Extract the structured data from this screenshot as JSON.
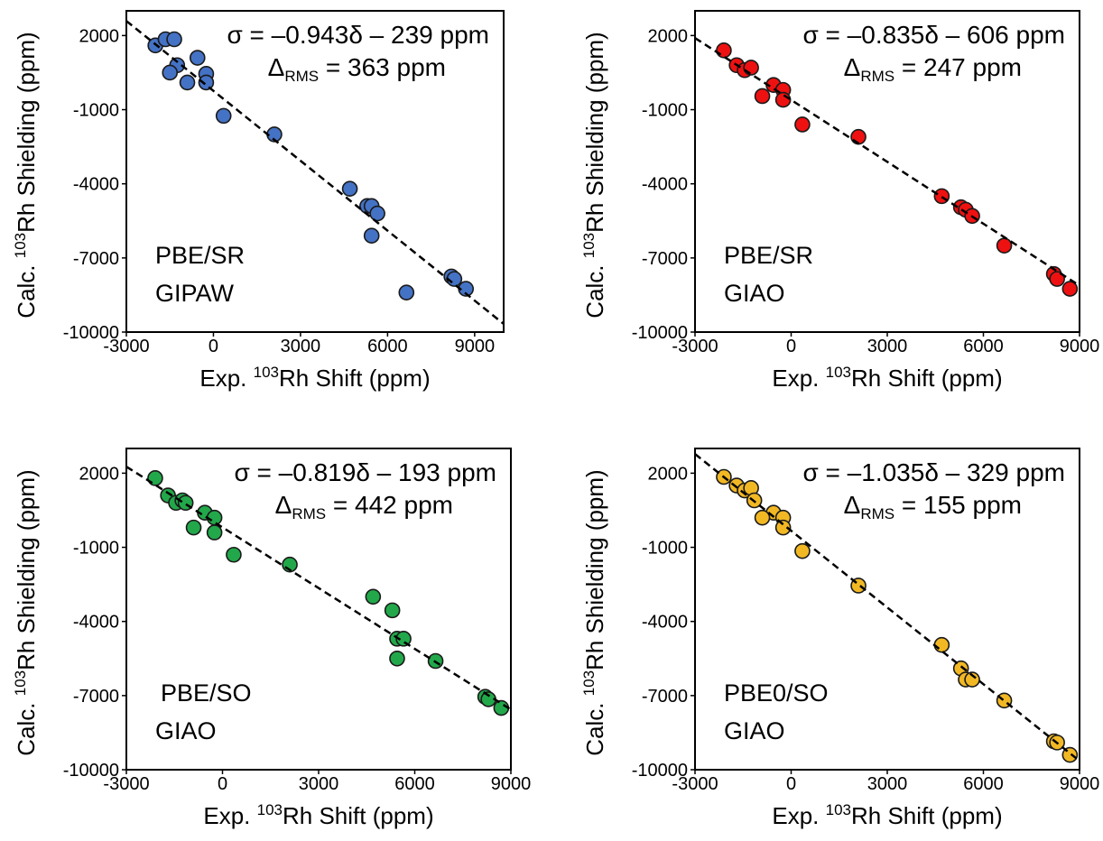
{
  "charts": [
    {
      "equation": "σ = –0.943δ – 239 ppm",
      "rms_prefix": "Δ",
      "rms_sub": "RMS",
      "rms_value": " = 363 ppm",
      "method_line1": "PBE/SR",
      "method_line2": "GIPAW",
      "xlabel_prefix": "Exp. ",
      "xlabel_sup": "103",
      "xlabel_rest": "Rh Shift (ppm)",
      "ylabel_prefix": "Calc. ",
      "ylabel_sup": "103",
      "ylabel_rest": "Rh Shielding (ppm)",
      "point_color": "#4472C4"
    },
    {
      "equation": "σ = –0.835δ – 606 ppm",
      "rms_prefix": "Δ",
      "rms_sub": "RMS",
      "rms_value": " = 247 ppm",
      "method_line1": "PBE/SR",
      "method_line2": "GIAO",
      "xlabel_prefix": "Exp. ",
      "xlabel_sup": "103",
      "xlabel_rest": "Rh Shift (ppm)",
      "ylabel_prefix": "Calc. ",
      "ylabel_sup": "103",
      "ylabel_rest": "Rh Shielding (ppm)",
      "point_color": "#EE1111"
    },
    {
      "equation": "σ = –0.819δ – 193 ppm",
      "rms_prefix": "Δ",
      "rms_sub": "RMS",
      "rms_value": " = 442 ppm",
      "method_line1": "PBE/SO",
      "method_line2": "GIAO",
      "xlabel_prefix": "Exp. ",
      "xlabel_sup": "103",
      "xlabel_rest": "Rh Shift (ppm)",
      "ylabel_prefix": "Calc. ",
      "ylabel_sup": "103",
      "ylabel_rest": "Rh Shielding (ppm)",
      "point_color": "#22A84A"
    },
    {
      "equation": "σ = –1.035δ – 329 ppm",
      "rms_prefix": "Δ",
      "rms_sub": "RMS",
      "rms_value": " = 155 ppm",
      "method_line1": "PBE0/SO",
      "method_line2": "GIAO",
      "xlabel_prefix": "Exp. ",
      "xlabel_sup": "103",
      "xlabel_rest": "Rh Shift (ppm)",
      "ylabel_prefix": "Calc. ",
      "ylabel_sup": "103",
      "ylabel_rest": "Rh Shielding (ppm)",
      "point_color": "#F2B824"
    }
  ],
  "chart_data": [
    {
      "type": "scatter",
      "xlim": [
        -3000,
        10000
      ],
      "ylim": [
        -10000,
        3000
      ],
      "xticks": [
        "-3000",
        "0",
        "3000",
        "6000",
        "9000"
      ],
      "yticks": [
        "2000",
        "-1000",
        "-4000",
        "-7000",
        "-10000"
      ],
      "fit": {
        "slope": -0.943,
        "intercept": -239
      },
      "x": [
        -2000,
        -1650,
        -1350,
        -1250,
        -1500,
        -550,
        -900,
        -250,
        -250,
        350,
        2100,
        4700,
        5300,
        5450,
        5650,
        5450,
        8200,
        8300,
        8700,
        6650
      ],
      "y": [
        1600,
        1850,
        1850,
        800,
        500,
        1100,
        100,
        450,
        100,
        -1250,
        -2000,
        -4200,
        -4900,
        -4900,
        -5200,
        -6100,
        -7750,
        -7850,
        -8250,
        -8400
      ]
    },
    {
      "type": "scatter",
      "xlim": [
        -3000,
        9000
      ],
      "ylim": [
        -10000,
        3000
      ],
      "xticks": [
        "-3000",
        "0",
        "3000",
        "6000",
        "9000"
      ],
      "yticks": [
        "2000",
        "-1000",
        "-4000",
        "-7000",
        "-10000"
      ],
      "fit": {
        "slope": -0.835,
        "intercept": -606
      },
      "x": [
        -2100,
        -1700,
        -1450,
        -1250,
        -550,
        -900,
        -250,
        -250,
        350,
        2100,
        4700,
        5300,
        5450,
        5650,
        6650,
        8200,
        8300,
        8700
      ],
      "y": [
        1400,
        800,
        600,
        700,
        0,
        -450,
        -200,
        -600,
        -1600,
        -2100,
        -4500,
        -4950,
        -5050,
        -5300,
        -6500,
        -7650,
        -7850,
        -8250
      ]
    },
    {
      "type": "scatter",
      "xlim": [
        -3000,
        9000
      ],
      "ylim": [
        -10000,
        3000
      ],
      "xticks": [
        "-3000",
        "0",
        "3000",
        "6000",
        "9000"
      ],
      "yticks": [
        "2000",
        "-1000",
        "-4000",
        "-7000",
        "-10000"
      ],
      "fit": {
        "slope": -0.819,
        "intercept": -193
      },
      "x": [
        -2100,
        -1700,
        -1450,
        -1250,
        -1150,
        -550,
        -900,
        -250,
        -250,
        350,
        2100,
        4700,
        5300,
        5450,
        5650,
        5450,
        6650,
        8200,
        8300,
        8700
      ],
      "y": [
        1800,
        1100,
        800,
        900,
        800,
        400,
        -200,
        200,
        -400,
        -1300,
        -1700,
        -3000,
        -3550,
        -4700,
        -4700,
        -5500,
        -5600,
        -7050,
        -7150,
        -7500
      ]
    },
    {
      "type": "scatter",
      "xlim": [
        -3000,
        9000
      ],
      "ylim": [
        -10000,
        3000
      ],
      "xticks": [
        "-3000",
        "0",
        "3000",
        "6000",
        "9000"
      ],
      "yticks": [
        "2000",
        "-1000",
        "-4000",
        "-7000",
        "-10000"
      ],
      "fit": {
        "slope": -1.035,
        "intercept": -329
      },
      "x": [
        -2100,
        -1700,
        -1450,
        -1250,
        -1150,
        -550,
        -900,
        -250,
        -250,
        350,
        2100,
        4700,
        5300,
        5450,
        5650,
        6650,
        8200,
        8300,
        8700
      ],
      "y": [
        1850,
        1500,
        1300,
        1400,
        900,
        400,
        200,
        200,
        -200,
        -1150,
        -2550,
        -4950,
        -5900,
        -6350,
        -6350,
        -7200,
        -8850,
        -8900,
        -9400
      ]
    }
  ]
}
